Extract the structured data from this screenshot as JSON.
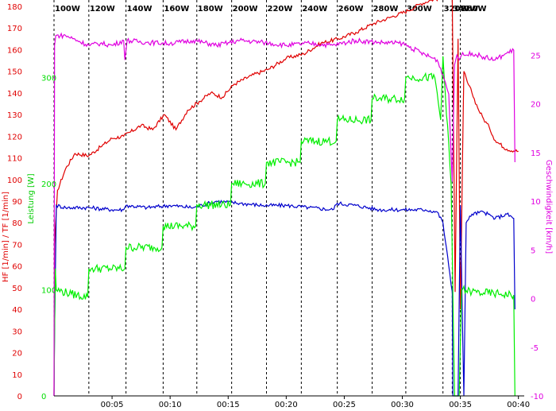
{
  "chart_data": {
    "type": "line",
    "title": "",
    "x_axis": {
      "label": "",
      "range_min": [
        0,
        40.5
      ],
      "tick_labels": [
        "00:05",
        "00:10",
        "00:15",
        "00:20",
        "00:25",
        "00:30",
        "00:35",
        "00:40"
      ],
      "tick_values_min": [
        5,
        10,
        15,
        20,
        25,
        30,
        35,
        40
      ]
    },
    "left_axis_hr": {
      "label": "HF [1/min] / TF [1/min]",
      "color": "#e00000",
      "range": [
        0,
        180
      ],
      "ticks": [
        0,
        10,
        20,
        30,
        40,
        50,
        60,
        70,
        80,
        90,
        100,
        110,
        120,
        130,
        140,
        150,
        160,
        170,
        180
      ]
    },
    "left_axis_power": {
      "label": "Leistung [W]",
      "color": "#00dd00",
      "range": [
        0,
        367
      ],
      "ticks": [
        0,
        100,
        200,
        300
      ]
    },
    "right_axis_speed": {
      "label": "Geschwindigkeit [km/h]",
      "color": "#e000e0",
      "range": [
        -10,
        30
      ],
      "ticks": [
        -10,
        -5,
        0,
        5,
        10,
        15,
        20,
        25
      ]
    },
    "stages": {
      "labels": [
        "100W",
        "120W",
        "140W",
        "160W",
        "180W",
        "200W",
        "220W",
        "240W",
        "260W",
        "280W",
        "300W",
        "320W",
        "340W",
        "360W"
      ],
      "start_min": [
        0,
        3,
        6.2,
        9.4,
        12.3,
        15.3,
        18.3,
        21.3,
        24.4,
        27.4,
        30.3,
        33.5,
        34.3,
        35.0
      ]
    },
    "grid": {
      "vertical_dashed_at_stages": true,
      "horizontal": false
    },
    "series": [
      {
        "name": "Herzfrequenz",
        "axis": "left_axis_hr",
        "color": "#e00000",
        "x": [
          0,
          0.05,
          0.3,
          1.0,
          1.8,
          3.0,
          4.0,
          5.0,
          6.0,
          7.5,
          8.5,
          9.5,
          10.5,
          11.5,
          12.5,
          13.5,
          14.5,
          15.5,
          17.0,
          18.5,
          20.0,
          21.5,
          23.0,
          24.5,
          26.0,
          27.5,
          29.0,
          30.5,
          31.5,
          32.5,
          33.5,
          34.0,
          34.3,
          34.55,
          34.8,
          35.0,
          35.3,
          35.6,
          36.0,
          36.5,
          37.0,
          37.5,
          38.0,
          39.0,
          40.0
        ],
        "y": [
          0,
          70,
          95,
          105,
          112,
          111,
          115,
          119,
          120,
          125,
          123,
          130,
          123,
          132,
          136,
          140,
          138,
          144,
          148,
          151,
          156,
          158,
          163,
          165,
          168,
          172,
          175,
          178,
          181,
          183,
          184,
          184,
          183,
          48,
          165,
          40,
          150,
          145,
          140,
          133,
          128,
          124,
          118,
          114,
          113
        ]
      },
      {
        "name": "Trittfrequenz",
        "axis": "left_axis_hr",
        "color": "#0000cc",
        "x": [
          0,
          0.05,
          0.2,
          1.0,
          3.0,
          5.0,
          6.0,
          6.2,
          8.0,
          10.0,
          12.0,
          14.0,
          16.0,
          18.0,
          20.0,
          22.0,
          24.0,
          24.4,
          26.0,
          28.0,
          30.0,
          32.0,
          33.0,
          33.5,
          34.0,
          34.3,
          34.35,
          34.6,
          34.8,
          35.0,
          35.3,
          35.5,
          36.0,
          37.0,
          38.0,
          39.0,
          39.6,
          39.7
        ],
        "y": [
          0,
          30,
          88,
          87,
          87,
          86,
          86,
          88,
          87,
          88,
          87,
          90,
          89,
          88,
          88,
          87,
          86,
          89,
          88,
          86,
          86,
          86,
          85,
          80,
          60,
          48,
          0,
          0,
          0,
          88,
          0,
          80,
          84,
          85,
          82,
          84,
          82,
          40
        ]
      },
      {
        "name": "Leistung",
        "axis": "left_axis_power",
        "color": "#00ee00",
        "x": [
          0,
          0.1,
          0.2,
          1.5,
          2.9,
          3.0,
          6.1,
          6.2,
          9.3,
          9.4,
          12.2,
          12.3,
          15.2,
          15.3,
          18.2,
          18.3,
          21.2,
          21.3,
          24.3,
          24.4,
          27.3,
          27.4,
          30.2,
          30.3,
          32.8,
          33.3,
          33.5,
          34.2,
          34.5,
          34.9,
          35.1,
          36.0,
          37.0,
          38.5,
          39.6,
          39.7
        ],
        "y": [
          0,
          120,
          100,
          96,
          93,
          120,
          120,
          140,
          140,
          160,
          160,
          180,
          180,
          200,
          200,
          220,
          220,
          240,
          240,
          260,
          260,
          280,
          280,
          300,
          300,
          260,
          320,
          200,
          0,
          0,
          100,
          98,
          97,
          96,
          95,
          0
        ]
      },
      {
        "name": "Geschwindigkeit",
        "axis": "right_axis_speed",
        "color": "#e000e0",
        "x": [
          0,
          0.05,
          0.15,
          1.0,
          2.0,
          3.0,
          4.0,
          5.0,
          6.0,
          6.1,
          6.3,
          8.0,
          10.0,
          12.0,
          14.0,
          16.0,
          18.0,
          20.0,
          22.0,
          24.0,
          26.0,
          28.0,
          30.0,
          32.0,
          33.0,
          33.5,
          34.0,
          34.3,
          34.5,
          34.7,
          34.9,
          35.1,
          35.5,
          36.0,
          37.0,
          38.0,
          39.0,
          39.6,
          39.7
        ],
        "y": [
          -10,
          26,
          27,
          27,
          26.5,
          26,
          26.2,
          26,
          26.5,
          24.5,
          26.5,
          26.3,
          26.2,
          26.5,
          26,
          26.5,
          26.3,
          26,
          26.2,
          26,
          26.5,
          26.3,
          26.2,
          25,
          24.5,
          23,
          21,
          12,
          24,
          25,
          24.5,
          25,
          25,
          25.2,
          24.8,
          24.5,
          25.2,
          25.5,
          14
        ]
      }
    ]
  }
}
